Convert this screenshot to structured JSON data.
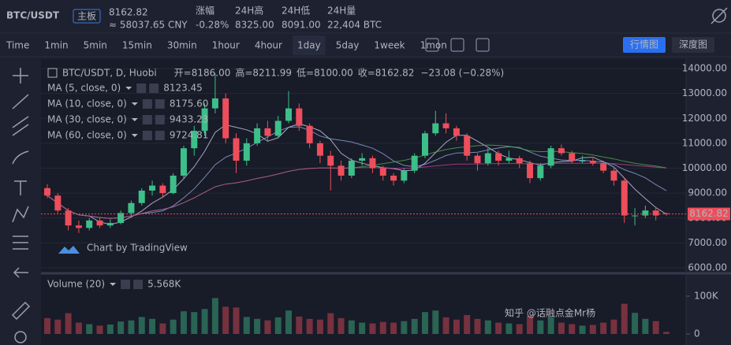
{
  "header": {
    "pair": "BTC/USDT",
    "badge": "主板",
    "price": "8162.82",
    "cny": "≈ 58037.65 CNY",
    "stats": [
      {
        "label": "涨幅",
        "value": "-0.28%"
      },
      {
        "label": "24H高",
        "value": "8325.00"
      },
      {
        "label": "24H低",
        "value": "8091.00"
      },
      {
        "label": "24H量",
        "value": "22,404 BTC"
      }
    ]
  },
  "toolbar": {
    "items": [
      "Time",
      "1min",
      "5min",
      "15min",
      "30min",
      "1hour",
      "4hour",
      "1day",
      "5day",
      "1week",
      "1mon"
    ],
    "active": 7,
    "buttons": [
      "行情图",
      "深度图"
    ]
  },
  "watermark": "知乎 @话融点金Mr杨",
  "chart_data": {
    "type": "candlestick",
    "title": "BTC/USDT, D, Huobi",
    "legend": [
      {
        "k": "开=",
        "v": "8186.00"
      },
      {
        "k": "高=",
        "v": "8211.99"
      },
      {
        "k": "低=",
        "v": "8100.00"
      },
      {
        "k": "收=",
        "v": "8162.82"
      }
    ],
    "change": "−23.08 (−0.28%)",
    "indicators": [
      {
        "label": "MA (5, close, 0)",
        "value": "8123.45",
        "period": 5,
        "color": "#c9c9e8"
      },
      {
        "label": "MA (10, close, 0)",
        "value": "8175.60",
        "period": 10,
        "color": "#8ea6d8"
      },
      {
        "label": "MA (30, close, 0)",
        "value": "9433.23",
        "period": 30,
        "color": "#4caf50"
      },
      {
        "label": "MA (60, close, 0)",
        "value": "9724.81",
        "period": 60,
        "color": "#c2409a"
      }
    ],
    "up_color": "#3dbf8a",
    "down_color": "#ee4e5b",
    "last_price_label": "8162.82",
    "ohlc": [
      [
        9200,
        9350,
        8800,
        8900
      ],
      [
        8900,
        9000,
        8200,
        8300
      ],
      [
        8300,
        8400,
        7500,
        7700
      ],
      [
        7700,
        7900,
        7400,
        7600
      ],
      [
        7600,
        8000,
        7500,
        7900
      ],
      [
        7900,
        8000,
        7600,
        7700
      ],
      [
        7700,
        7950,
        7600,
        7800
      ],
      [
        7800,
        8300,
        7750,
        8200
      ],
      [
        8200,
        8700,
        8100,
        8600
      ],
      [
        8600,
        9200,
        8500,
        9100
      ],
      [
        9100,
        9500,
        8900,
        9300
      ],
      [
        9300,
        9400,
        8850,
        9000
      ],
      [
        9000,
        9800,
        8950,
        9700
      ],
      [
        9700,
        10900,
        9600,
        10800
      ],
      [
        10800,
        11700,
        10500,
        11500
      ],
      [
        11500,
        12600,
        11300,
        12400
      ],
      [
        12400,
        13800,
        12200,
        12800
      ],
      [
        12800,
        13000,
        11000,
        11200
      ],
      [
        11200,
        11400,
        9800,
        10300
      ],
      [
        10300,
        11200,
        10100,
        11000
      ],
      [
        11000,
        11800,
        10900,
        11600
      ],
      [
        11600,
        11900,
        11100,
        11300
      ],
      [
        11300,
        12100,
        11200,
        11900
      ],
      [
        11900,
        13100,
        11800,
        12400
      ],
      [
        12400,
        12600,
        11500,
        11700
      ],
      [
        11700,
        11800,
        10800,
        11000
      ],
      [
        11000,
        11100,
        10200,
        10500
      ],
      [
        10500,
        10700,
        9100,
        10100
      ],
      [
        10100,
        10300,
        9500,
        9700
      ],
      [
        9700,
        10400,
        9600,
        10300
      ],
      [
        10300,
        10600,
        10100,
        10400
      ],
      [
        10400,
        10500,
        9800,
        10000
      ],
      [
        10000,
        10100,
        9500,
        9700
      ],
      [
        9700,
        9800,
        9300,
        9500
      ],
      [
        9500,
        10000,
        9400,
        9900
      ],
      [
        9900,
        10600,
        9800,
        10500
      ],
      [
        10500,
        11500,
        10400,
        11400
      ],
      [
        11400,
        12300,
        11300,
        11800
      ],
      [
        11800,
        12200,
        11400,
        11600
      ],
      [
        11600,
        11700,
        11100,
        11300
      ],
      [
        11300,
        11400,
        10300,
        10500
      ],
      [
        10500,
        10600,
        9900,
        10200
      ],
      [
        10200,
        10800,
        10100,
        10600
      ],
      [
        10600,
        10700,
        10100,
        10300
      ],
      [
        10300,
        10700,
        10200,
        10400
      ],
      [
        10400,
        10500,
        10000,
        10200
      ],
      [
        10200,
        10300,
        9400,
        9600
      ],
      [
        9600,
        10200,
        9500,
        10100
      ],
      [
        10100,
        10900,
        10000,
        10800
      ],
      [
        10800,
        10950,
        10500,
        10600
      ],
      [
        10600,
        10700,
        10200,
        10300
      ],
      [
        10300,
        10500,
        10200,
        10300
      ],
      [
        10300,
        10400,
        10100,
        10200
      ],
      [
        10200,
        10300,
        9800,
        9900
      ],
      [
        9900,
        10000,
        9300,
        9500
      ],
      [
        9500,
        9600,
        7800,
        8100
      ],
      [
        8100,
        8400,
        7700,
        8100
      ],
      [
        8100,
        8500,
        8000,
        8300
      ],
      [
        8300,
        8450,
        7900,
        8100
      ],
      [
        8186,
        8211.99,
        8100,
        8162.82
      ]
    ],
    "ylim": [
      6000,
      14000
    ],
    "yticks": [
      {
        "value": 14000,
        "label": "14000.00"
      },
      {
        "value": 13000,
        "label": "13000.00"
      },
      {
        "value": 12000,
        "label": "12000.00"
      },
      {
        "value": 11000,
        "label": "11000.00"
      },
      {
        "value": 10000,
        "label": "10000.00"
      },
      {
        "value": 9000,
        "label": "9000.00"
      },
      {
        "value": 8000,
        "label": "8000.00"
      },
      {
        "value": 7000,
        "label": "7000.00"
      },
      {
        "value": 6000,
        "label": "6000.00"
      }
    ],
    "watermark": "Chart by TradingView",
    "volume_title": "Volume (20)",
    "volume_label": "5.568K",
    "volume": [
      42000,
      38000,
      55000,
      30000,
      26000,
      22000,
      25000,
      33000,
      36000,
      45000,
      40000,
      28000,
      38000,
      60000,
      58000,
      66000,
      95000,
      72000,
      70000,
      45000,
      40000,
      36000,
      44000,
      62000,
      46000,
      40000,
      38000,
      55000,
      42000,
      36000,
      30000,
      28000,
      32000,
      30000,
      34000,
      40000,
      58000,
      62000,
      44000,
      38000,
      50000,
      40000,
      36000,
      30000,
      28000,
      26000,
      48000,
      36000,
      44000,
      30000,
      26000,
      22000,
      24000,
      30000,
      38000,
      80000,
      56000,
      40000,
      34000,
      5568
    ],
    "vlim": [
      0,
      100000
    ],
    "vticks": [
      {
        "value": 100000,
        "label": "100K"
      },
      0
    ]
  }
}
